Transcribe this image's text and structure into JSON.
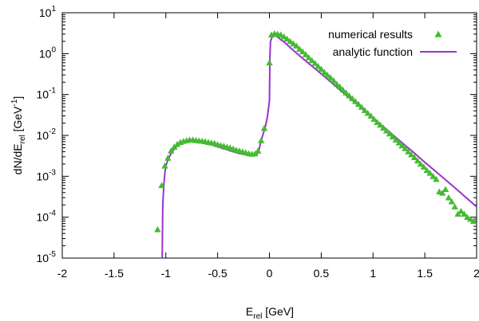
{
  "chart_data": {
    "type": "scatter",
    "xlabel": "E",
    "xlabel_sub": "rel",
    "xlabel_unit": " [GeV]",
    "ylabel_pre": "dN/dE",
    "ylabel_sub": "rel",
    "ylabel_mid": " [GeV",
    "ylabel_sup": "-1",
    "ylabel_post": "]",
    "xlim": [
      -2,
      2
    ],
    "ylim": [
      1e-05,
      10
    ],
    "yscale": "log",
    "grid": false,
    "legend_placement": "top-right",
    "x_ticks": [
      {
        "value": -2,
        "label": "-2"
      },
      {
        "value": -1.5,
        "label": "-1.5"
      },
      {
        "value": -1,
        "label": "-1"
      },
      {
        "value": -0.5,
        "label": "-0.5"
      },
      {
        "value": 0,
        "label": "0"
      },
      {
        "value": 0.5,
        "label": "0.5"
      },
      {
        "value": 1,
        "label": "1"
      },
      {
        "value": 1.5,
        "label": "1.5"
      },
      {
        "value": 2,
        "label": "2"
      }
    ],
    "y_ticks": [
      {
        "value": 1e-05,
        "base": "10",
        "exp": "-5"
      },
      {
        "value": 0.0001,
        "base": "10",
        "exp": "-4"
      },
      {
        "value": 0.001,
        "base": "10",
        "exp": "-3"
      },
      {
        "value": 0.01,
        "base": "10",
        "exp": "-2"
      },
      {
        "value": 0.1,
        "base": "10",
        "exp": "-1"
      },
      {
        "value": 1,
        "base": "10",
        "exp": "0"
      },
      {
        "value": 10,
        "base": "10",
        "exp": "1"
      }
    ],
    "series": [
      {
        "name": "numerical results",
        "kind": "points",
        "color": "#44bb33",
        "x": [
          -1.08,
          -1.04,
          -1.01,
          -0.98,
          -0.95,
          -0.92,
          -0.89,
          -0.86,
          -0.83,
          -0.8,
          -0.77,
          -0.74,
          -0.71,
          -0.68,
          -0.65,
          -0.62,
          -0.59,
          -0.56,
          -0.53,
          -0.5,
          -0.47,
          -0.44,
          -0.41,
          -0.38,
          -0.35,
          -0.32,
          -0.29,
          -0.26,
          -0.23,
          -0.2,
          -0.17,
          -0.14,
          -0.11,
          -0.08,
          -0.05,
          0.0,
          0.02,
          0.05,
          0.08,
          0.11,
          0.14,
          0.17,
          0.2,
          0.23,
          0.26,
          0.29,
          0.32,
          0.35,
          0.38,
          0.41,
          0.44,
          0.47,
          0.5,
          0.53,
          0.56,
          0.59,
          0.62,
          0.65,
          0.68,
          0.71,
          0.74,
          0.77,
          0.8,
          0.83,
          0.86,
          0.89,
          0.92,
          0.95,
          0.98,
          1.01,
          1.04,
          1.07,
          1.1,
          1.13,
          1.16,
          1.19,
          1.22,
          1.25,
          1.28,
          1.31,
          1.34,
          1.37,
          1.4,
          1.43,
          1.46,
          1.49,
          1.52,
          1.55,
          1.58,
          1.61,
          1.64,
          1.67,
          1.7,
          1.73,
          1.76,
          1.79,
          1.82,
          1.85,
          1.88,
          1.91,
          1.94,
          1.97
        ],
        "y": [
          5e-05,
          0.0006,
          0.0018,
          0.0028,
          0.0042,
          0.0052,
          0.0061,
          0.0068,
          0.0072,
          0.0075,
          0.0078,
          0.0078,
          0.0076,
          0.0074,
          0.0073,
          0.0071,
          0.0068,
          0.0066,
          0.0064,
          0.006,
          0.0057,
          0.0055,
          0.0052,
          0.005,
          0.0047,
          0.0044,
          0.0042,
          0.004,
          0.0038,
          0.0036,
          0.0035,
          0.0036,
          0.0042,
          0.0075,
          0.015,
          0.6,
          2.9,
          3.1,
          3.0,
          2.9,
          2.6,
          2.3,
          2.0,
          1.75,
          1.55,
          1.3,
          1.12,
          0.95,
          0.8,
          0.68,
          0.58,
          0.49,
          0.42,
          0.35,
          0.3,
          0.26,
          0.22,
          0.18,
          0.155,
          0.13,
          0.11,
          0.094,
          0.08,
          0.068,
          0.058,
          0.049,
          0.041,
          0.035,
          0.03,
          0.025,
          0.021,
          0.018,
          0.0152,
          0.013,
          0.011,
          0.0093,
          0.0078,
          0.0066,
          0.0056,
          0.0048,
          0.004,
          0.0034,
          0.0029,
          0.0024,
          0.002,
          0.0017,
          0.0014,
          0.0012,
          0.001,
          0.00085,
          0.00042,
          0.00039,
          0.00048,
          0.0003,
          0.00024,
          0.00018,
          0.00012,
          0.00014,
          0.00012,
          0.0001,
          9e-05,
          8e-05
        ]
      },
      {
        "name": "analytic function",
        "kind": "line",
        "color": "#9933cc",
        "x": [
          -1.035,
          -1.03,
          -1.02,
          -1.01,
          -1.0,
          -0.98,
          -0.95,
          -0.92,
          -0.89,
          -0.86,
          -0.83,
          -0.8,
          -0.77,
          -0.74,
          -0.71,
          -0.68,
          -0.65,
          -0.62,
          -0.59,
          -0.56,
          -0.53,
          -0.5,
          -0.47,
          -0.44,
          -0.41,
          -0.38,
          -0.35,
          -0.32,
          -0.29,
          -0.26,
          -0.23,
          -0.2,
          -0.17,
          -0.14,
          -0.12,
          -0.1,
          -0.08,
          -0.06,
          -0.04,
          -0.02,
          0.0,
          0.005,
          0.01,
          0.03,
          0.05,
          0.08,
          0.11,
          0.15,
          0.2,
          0.3,
          0.4,
          0.5,
          0.6,
          0.7,
          0.8,
          0.9,
          1.0,
          1.1,
          1.2,
          1.3,
          1.4,
          1.5,
          1.6,
          1.7,
          1.8,
          1.9,
          2.0
        ],
        "y": [
          1e-05,
          0.0002,
          0.0006,
          0.0012,
          0.0018,
          0.0025,
          0.0036,
          0.0046,
          0.0055,
          0.0062,
          0.0067,
          0.007,
          0.0072,
          0.0072,
          0.0071,
          0.0069,
          0.0067,
          0.0064,
          0.0062,
          0.0059,
          0.0056,
          0.0053,
          0.005,
          0.0047,
          0.0045,
          0.0042,
          0.004,
          0.0038,
          0.0036,
          0.0035,
          0.0034,
          0.0033,
          0.0032,
          0.0032,
          0.0035,
          0.0045,
          0.0075,
          0.011,
          0.016,
          0.028,
          0.07,
          0.8,
          2.0,
          2.7,
          2.8,
          2.55,
          2.2,
          1.85,
          1.4,
          0.85,
          0.52,
          0.32,
          0.195,
          0.118,
          0.072,
          0.044,
          0.027,
          0.0163,
          0.0099,
          0.006,
          0.0037,
          0.0022,
          0.00135,
          0.00082,
          0.0005,
          0.0003,
          0.00018
        ]
      }
    ]
  }
}
